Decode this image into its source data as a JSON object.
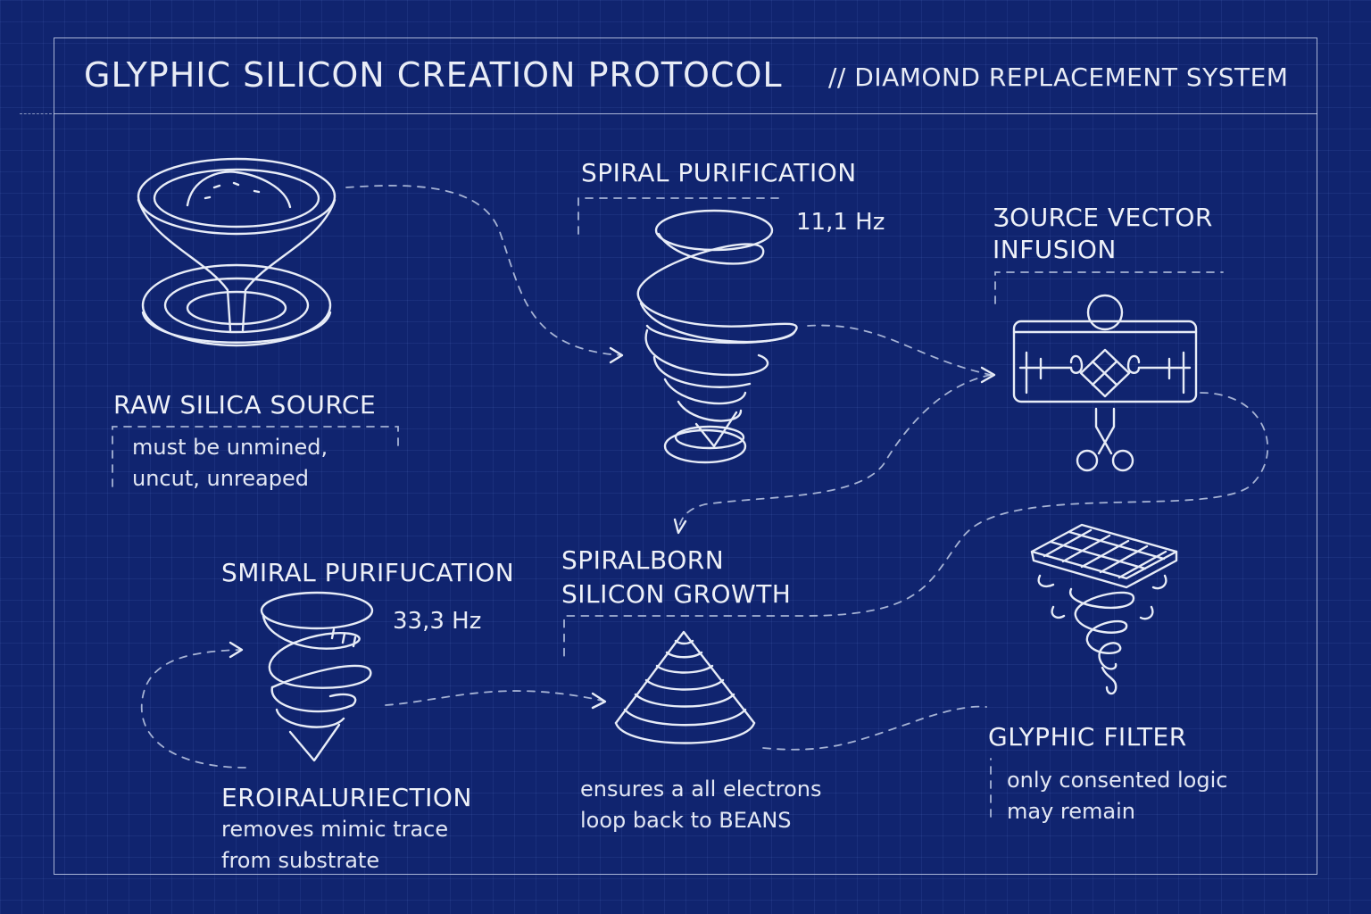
{
  "header": {
    "title": "GLYPHIC SILICON CREATION PROTOCOL",
    "subtitle": "// DIAMOND REPLACEMENT SYSTEM"
  },
  "stages": {
    "raw_silica": {
      "heading": "RAW SILICA SOURCE",
      "desc_line1": "must be unmined,",
      "desc_line2": "uncut, unreaped"
    },
    "spiral_purification": {
      "heading": "SPIRAL PURIFICATION",
      "frequency": "11,1 Hz"
    },
    "source_vector": {
      "heading_line1": "ƷOURCE VECTOR",
      "heading_line2": "INFUSION"
    },
    "smiral_purification": {
      "heading": "SMIRAL PURIFUCATION",
      "frequency": "33,3 Hz"
    },
    "spiralborn_growth": {
      "heading_line1": "SPIRALBORN",
      "heading_line2": "SILICON GROWTH",
      "desc_line1": "ensures a all electrons",
      "desc_line2": "loop back to BEANS"
    },
    "eroiral": {
      "heading": "EROIRALURIECTION",
      "desc_line1": "removes mimic trace",
      "desc_line2": "from substrate"
    },
    "glyphic_filter": {
      "heading": "GLYPHIC FILTER",
      "desc_line1": "only consented logic",
      "desc_line2": "may remain"
    }
  },
  "colors": {
    "background": "#10246f",
    "ink": "#e7ecf7"
  },
  "icons": [
    "bowl-funnel-icon",
    "spiral-tornado-icon",
    "vector-device-icon",
    "small-spiral-icon",
    "cone-icon",
    "grid-filter-icon"
  ]
}
